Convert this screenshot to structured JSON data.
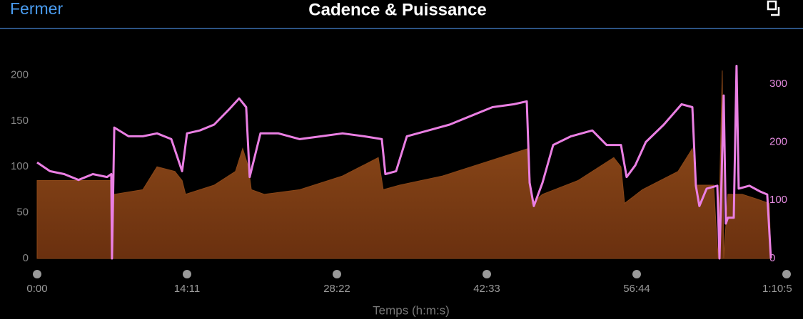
{
  "header": {
    "close": "Fermer",
    "title": "Cadence & Puissance"
  },
  "chart_data": {
    "type": "area-line",
    "x_label": "Temps (h:m:s)",
    "xlim": [
      0,
      4255
    ],
    "xticks": [
      {
        "value": 0,
        "label": "0:00"
      },
      {
        "value": 851,
        "label": "14:11"
      },
      {
        "value": 1702,
        "label": "28:22"
      },
      {
        "value": 2553,
        "label": "42:33"
      },
      {
        "value": 3404,
        "label": "56:44"
      },
      {
        "value": 4255,
        "label": "1:10:5"
      }
    ],
    "ylim": [
      0,
      212
    ],
    "yticks": [
      0,
      50,
      100,
      150,
      200
    ],
    "y2lim": [
      0,
      334
    ],
    "y2ticks": [
      0,
      100,
      200,
      300
    ],
    "series": [
      {
        "name": "Cadence",
        "color": "#8a4718",
        "x": [
          0,
          397,
          421,
          425,
          438,
          600,
          681,
          782,
          823,
          843,
          1005,
          1126,
          1167,
          1199,
          1216,
          1289,
          1491,
          1734,
          1937,
          1965,
          2058,
          2302,
          2545,
          2788,
          2808,
          2869,
          3071,
          3274,
          3315,
          3335,
          3436,
          3639,
          3720,
          3740,
          3841,
          3866,
          3890,
          3898,
          3922,
          4003,
          4084,
          4157,
          4166
        ],
        "values": [
          85,
          85,
          85,
          0,
          70,
          75,
          100,
          95,
          85,
          70,
          80,
          95,
          120,
          100,
          75,
          70,
          75,
          90,
          110,
          75,
          80,
          90,
          105,
          120,
          60,
          70,
          85,
          110,
          100,
          60,
          75,
          95,
          120,
          80,
          80,
          0,
          205,
          0,
          70,
          70,
          65,
          60,
          0
        ]
      },
      {
        "name": "Puissance",
        "color": "#ea7fe3",
        "axis": "y2",
        "x": [
          0,
          73,
          154,
          235,
          316,
          397,
          421,
          425,
          438,
          519,
          600,
          681,
          762,
          823,
          851,
          924,
          1005,
          1086,
          1147,
          1187,
          1207,
          1268,
          1370,
          1491,
          1613,
          1734,
          1856,
          1957,
          1977,
          2038,
          2099,
          2221,
          2342,
          2464,
          2585,
          2707,
          2780,
          2796,
          2820,
          2869,
          2930,
          3031,
          3152,
          3233,
          3315,
          3347,
          3396,
          3456,
          3558,
          3659,
          3720,
          3740,
          3760,
          3801,
          3862,
          3874,
          3898,
          3910,
          3922,
          3955,
          3971,
          3983,
          4044,
          4105,
          4145,
          4166
        ],
        "values": [
          165,
          150,
          145,
          135,
          145,
          140,
          145,
          0,
          225,
          210,
          210,
          215,
          205,
          150,
          215,
          220,
          230,
          255,
          275,
          260,
          140,
          215,
          215,
          205,
          210,
          215,
          210,
          205,
          145,
          150,
          210,
          220,
          230,
          245,
          260,
          265,
          270,
          130,
          90,
          130,
          195,
          210,
          220,
          195,
          195,
          140,
          160,
          200,
          230,
          265,
          260,
          125,
          90,
          120,
          125,
          0,
          280,
          60,
          70,
          70,
          331,
          120,
          125,
          115,
          110,
          0
        ]
      }
    ]
  }
}
